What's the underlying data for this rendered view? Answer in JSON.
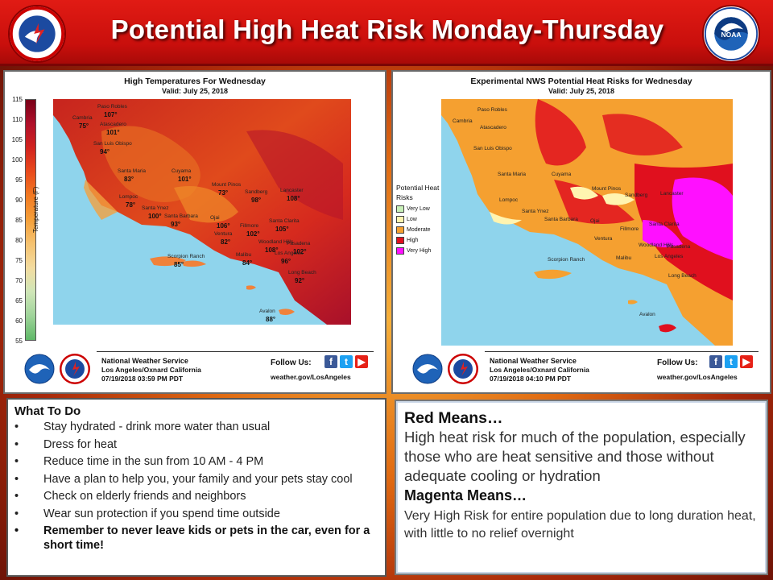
{
  "banner": {
    "title": "Potential High Heat Risk Monday-Thursday",
    "left_seal_text": "NATIONAL WEATHER SERVICE",
    "right_seal_text": "NOAA"
  },
  "left_map": {
    "title": "High Temperatures For Wednesday",
    "valid": "Valid: July 25, 2018",
    "colorbar_label": "Temperature (F)",
    "colorbar_ticks": [
      "115",
      "110",
      "105",
      "100",
      "95",
      "90",
      "85",
      "80",
      "75",
      "70",
      "65",
      "60",
      "55"
    ],
    "cities": [
      {
        "name": "Paso Robles",
        "temp": "107°"
      },
      {
        "name": "Cambria",
        "temp": "75°"
      },
      {
        "name": "Atascadero",
        "temp": "101°"
      },
      {
        "name": "San Luis Obispo",
        "temp": "94°"
      },
      {
        "name": "Santa Maria",
        "temp": "83°"
      },
      {
        "name": "Cuyama",
        "temp": "101°"
      },
      {
        "name": "Lompoc",
        "temp": "78°"
      },
      {
        "name": "Santa Ynez",
        "temp": "100°"
      },
      {
        "name": "Mount Pinos",
        "temp": "73°"
      },
      {
        "name": "Sandberg",
        "temp": "98°"
      },
      {
        "name": "Lancaster",
        "temp": "108°"
      },
      {
        "name": "Santa Barbara",
        "temp": "93°"
      },
      {
        "name": "Ojai",
        "temp": "106°"
      },
      {
        "name": "Ventura",
        "temp": "82°"
      },
      {
        "name": "Fillmore",
        "temp": "102°"
      },
      {
        "name": "Santa Clarita",
        "temp": "105°"
      },
      {
        "name": "Woodland Hills",
        "temp": "108°"
      },
      {
        "name": "Pasadena",
        "temp": "102°"
      },
      {
        "name": "Malibu",
        "temp": "84°"
      },
      {
        "name": "Los Angeles",
        "temp": "96°"
      },
      {
        "name": "Scorpion Ranch",
        "temp": "85°"
      },
      {
        "name": "Long Beach",
        "temp": "92°"
      },
      {
        "name": "Avalon",
        "temp": "88°"
      }
    ],
    "footer": {
      "agency": "National Weather Service",
      "office": "Los Angeles/Oxnard California",
      "date": "07/19/2018 03:59 PM PDT",
      "follow": "Follow Us:",
      "url": "weather.gov/LosAngeles"
    }
  },
  "right_map": {
    "title": "Experimental NWS Potential Heat Risks for Wednesday",
    "valid": "Valid: July 25, 2018",
    "legend_title": "Potential Heat Risks",
    "legend": [
      {
        "label": "Very Low",
        "color": "#c8f0b8"
      },
      {
        "label": "Low",
        "color": "#fff4b0"
      },
      {
        "label": "Moderate",
        "color": "#f5a030"
      },
      {
        "label": "High",
        "color": "#e0101e"
      },
      {
        "label": "Very High",
        "color": "#ff10ff"
      }
    ],
    "cities": [
      "Paso Robles",
      "Cambria",
      "Atascadero",
      "San Luis Obispo",
      "Santa Maria",
      "Cuyama",
      "Lompoc",
      "Santa Ynez",
      "Mount Pinos",
      "Sandberg",
      "Lancaster",
      "Santa Barbara",
      "Ojai",
      "Ventura",
      "Fillmore",
      "Santa Clarita",
      "Woodland Hills",
      "Pasadena",
      "Malibu",
      "Los Angeles",
      "Scorpion Ranch",
      "Long Beach",
      "Avalon"
    ],
    "footer": {
      "agency": "National Weather Service",
      "office": "Los Angeles/Oxnard California",
      "date": "07/19/2018 04:10 PM PDT",
      "follow": "Follow Us:",
      "url": "weather.gov/LosAngeles"
    }
  },
  "todo": {
    "title": "What To Do",
    "bullet": "•",
    "items": [
      "Stay hydrated - drink more water than usual",
      "Dress for heat",
      "Reduce time in the sun from 10 AM - 4 PM",
      "Have a plan to help you, your family and your pets stay cool",
      "Check on elderly friends and neighbors",
      "Wear sun protection if you spend time outside",
      "Remember to never leave kids or pets in the car, even for a short time!"
    ]
  },
  "means": {
    "red_heading": "Red Means…",
    "red_text": "High heat risk for much of the population, especially those who are heat sensitive and those without adequate cooling or hydration",
    "magenta_heading": "Magenta Means…",
    "magenta_text": "Very High Risk for entire population due to long duration heat, with little to no relief overnight"
  },
  "colors": {
    "banner_red": "#c90f0c",
    "facebook": "#3b5998",
    "twitter": "#1da1f2",
    "youtube": "#e62117"
  },
  "icons": [
    "nws-seal-icon",
    "noaa-seal-icon",
    "facebook-icon",
    "twitter-icon",
    "youtube-icon"
  ]
}
